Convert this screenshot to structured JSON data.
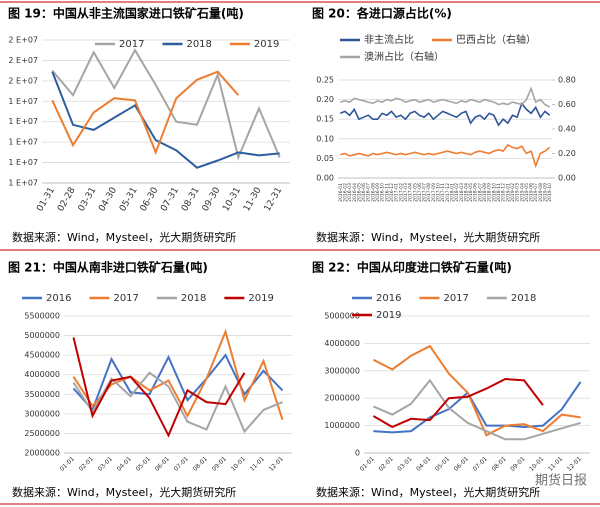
{
  "chart_data": [
    {
      "type": "line",
      "title": "图 19：中国从非主流国家进口铁矿石量(吨)",
      "categories": [
        "01-31",
        "02-28",
        "03-31",
        "04-30",
        "05-31",
        "06-30",
        "07-31",
        "08-31",
        "09-30",
        "10-31",
        "11-30",
        "12-31"
      ],
      "series": [
        {
          "name": "2017",
          "color": "#a5a5a5",
          "values": [
            17000000,
            14600000,
            18800000,
            15300000,
            19000000,
            15600000,
            12000000,
            11700000,
            16600000,
            8500000,
            13300000,
            8500000
          ]
        },
        {
          "name": "2018",
          "color": "#2e5e9e",
          "values": [
            16900000,
            11700000,
            11200000,
            12400000,
            13600000,
            10200000,
            9200000,
            7500000,
            8200000,
            9000000,
            8700000,
            8900000
          ]
        },
        {
          "name": "2019",
          "color": "#ed7d31",
          "values": [
            14100000,
            9700000,
            12900000,
            14300000,
            14100000,
            9000000,
            14300000,
            16100000,
            16900000,
            14600000,
            null,
            null
          ]
        }
      ],
      "ylim": [
        6000000,
        20000000
      ],
      "yticks": [
        {
          "value": 6000000,
          "label": "1 E+07"
        },
        {
          "value": 8000000,
          "label": "1 E+07"
        },
        {
          "value": 10000000,
          "label": "1 E+07"
        },
        {
          "value": 12000000,
          "label": "1 E+07"
        },
        {
          "value": 14000000,
          "label": "1 E+07"
        },
        {
          "value": 16000000,
          "label": "2 E+07"
        },
        {
          "value": 18000000,
          "label": "2 E+07"
        },
        {
          "value": 20000000,
          "label": "2 E+07"
        }
      ],
      "grid": true,
      "legend": "top",
      "note": "数据来源：Wind，Mysteel，光大期货研究所"
    },
    {
      "type": "line",
      "title": "图 20：各进口源占比(%)",
      "categories": [
        "2016-01",
        "2016-02",
        "2016-03",
        "2016-04",
        "2016-05",
        "2016-06",
        "2016-07",
        "2016-08",
        "2016-09",
        "2016-10",
        "2016-11",
        "2016-12",
        "2017-01",
        "2017-02",
        "2017-03",
        "2017-04",
        "2017-05",
        "2017-06",
        "2017-07",
        "2017-08",
        "2017-09",
        "2017-10",
        "2017-11",
        "2017-12",
        "2018-01",
        "2018-02",
        "2018-03",
        "2018-04",
        "2018-05",
        "2018-06",
        "2018-07",
        "2018-08",
        "2018-09",
        "2018-10",
        "2018-11",
        "2018-12",
        "2019-01",
        "2019-02",
        "2019-03",
        "2019-04",
        "2019-05",
        "2019-06",
        "2019-07",
        "2019-08",
        "2019-09",
        "2019-10"
      ],
      "series": [
        {
          "name": "非主流占比",
          "color": "#2f5597",
          "values": [
            0.165,
            0.17,
            0.16,
            0.175,
            0.15,
            0.155,
            0.16,
            0.15,
            0.15,
            0.165,
            0.16,
            0.17,
            0.155,
            0.16,
            0.15,
            0.165,
            0.17,
            0.16,
            0.155,
            0.165,
            0.15,
            0.16,
            0.17,
            0.165,
            0.16,
            0.155,
            0.165,
            0.17,
            0.14,
            0.155,
            0.16,
            0.15,
            0.165,
            0.16,
            0.135,
            0.15,
            0.14,
            0.16,
            0.155,
            0.19,
            0.175,
            0.165,
            0.18,
            0.155,
            0.17,
            0.16
          ]
        },
        {
          "name": "巴西占比（右轴）",
          "color": "#ed7d31",
          "axis": "y2",
          "values": [
            0.19,
            0.2,
            0.18,
            0.19,
            0.2,
            0.19,
            0.18,
            0.2,
            0.19,
            0.2,
            0.21,
            0.2,
            0.19,
            0.2,
            0.19,
            0.2,
            0.21,
            0.2,
            0.19,
            0.2,
            0.19,
            0.2,
            0.21,
            0.22,
            0.21,
            0.2,
            0.21,
            0.2,
            0.19,
            0.21,
            0.22,
            0.21,
            0.2,
            0.22,
            0.23,
            0.22,
            0.27,
            0.25,
            0.24,
            0.26,
            0.2,
            0.22,
            0.1,
            0.2,
            0.22,
            0.25
          ]
        },
        {
          "name": "澳洲占比（右轴）",
          "color": "#a5a5a5",
          "axis": "y2",
          "values": [
            0.62,
            0.63,
            0.62,
            0.65,
            0.64,
            0.63,
            0.62,
            0.61,
            0.63,
            0.62,
            0.64,
            0.63,
            0.65,
            0.64,
            0.62,
            0.63,
            0.64,
            0.62,
            0.63,
            0.64,
            0.62,
            0.63,
            0.64,
            0.63,
            0.62,
            0.61,
            0.63,
            0.62,
            0.64,
            0.63,
            0.62,
            0.64,
            0.63,
            0.62,
            0.6,
            0.61,
            0.6,
            0.62,
            0.61,
            0.6,
            0.64,
            0.73,
            0.62,
            0.64,
            0.6,
            0.58
          ]
        }
      ],
      "ylim": [
        0,
        0.25
      ],
      "yticks": [
        {
          "value": 0,
          "label": "0.00"
        },
        {
          "value": 0.05,
          "label": "0.05"
        },
        {
          "value": 0.1,
          "label": "0.10"
        },
        {
          "value": 0.15,
          "label": "0.15"
        },
        {
          "value": 0.2,
          "label": "0.20"
        },
        {
          "value": 0.25,
          "label": "0.25"
        }
      ],
      "y2lim": [
        0,
        0.8
      ],
      "y2ticks": [
        {
          "value": 0,
          "label": "0.00"
        },
        {
          "value": 0.2,
          "label": "0.20"
        },
        {
          "value": 0.4,
          "label": "0.40"
        },
        {
          "value": 0.6,
          "label": "0.60"
        },
        {
          "value": 0.8,
          "label": "0.80"
        }
      ],
      "grid": true,
      "legend": "top",
      "note": "数据来源：Wind，Mysteel，光大期货研究所"
    },
    {
      "type": "line",
      "title": "图 21：中国从南非进口铁矿石量(吨)",
      "categories": [
        "01-01",
        "02-01",
        "03-01",
        "04-01",
        "05-01",
        "06-01",
        "07-01",
        "08-01",
        "09-01",
        "10-01",
        "11-01",
        "12-01"
      ],
      "series": [
        {
          "name": "2016",
          "color": "#4472c4",
          "values": [
            3650000,
            3100000,
            4400000,
            3550000,
            3500000,
            4450000,
            3350000,
            3900000,
            4500000,
            3500000,
            4100000,
            3600000
          ]
        },
        {
          "name": "2017",
          "color": "#ed7d31",
          "values": [
            3950000,
            3200000,
            3750000,
            3950000,
            3600000,
            3850000,
            2950000,
            3900000,
            5100000,
            3350000,
            4350000,
            2850000
          ]
        },
        {
          "name": "2018",
          "color": "#a5a5a5",
          "values": [
            3800000,
            3050000,
            3900000,
            3450000,
            4050000,
            3700000,
            2800000,
            2600000,
            3700000,
            2550000,
            3100000,
            3300000
          ]
        },
        {
          "name": "2019",
          "color": "#c00000",
          "values": [
            4950000,
            2950000,
            3850000,
            3950000,
            3400000,
            2450000,
            3600000,
            3300000,
            3250000,
            4050000,
            null,
            null
          ]
        }
      ],
      "ylim": [
        2000000,
        5500000
      ],
      "yticks": [
        2000000,
        2500000,
        3000000,
        3500000,
        4000000,
        4500000,
        5000000,
        5500000
      ],
      "grid": true,
      "legend": "top",
      "note": "数据来源：Wind，Mysteel，光大期货研究所"
    },
    {
      "type": "line",
      "title": "图 22：中国从印度进口铁矿石量(吨)",
      "categories": [
        "01-01",
        "02-01",
        "03-01",
        "04-01",
        "05-01",
        "06-01",
        "07-01",
        "08-01",
        "09-01",
        "10-01",
        "11-01",
        "12-01"
      ],
      "series": [
        {
          "name": "2016",
          "color": "#4472c4",
          "values": [
            800000,
            750000,
            800000,
            1300000,
            1600000,
            2200000,
            1000000,
            1000000,
            950000,
            1000000,
            1600000,
            2600000
          ]
        },
        {
          "name": "2017",
          "color": "#ed7d31",
          "values": [
            3400000,
            3050000,
            3550000,
            3900000,
            2900000,
            2200000,
            650000,
            1000000,
            1050000,
            800000,
            1400000,
            1300000
          ]
        },
        {
          "name": "2018",
          "color": "#a5a5a5",
          "values": [
            1700000,
            1400000,
            1800000,
            2650000,
            1650000,
            1100000,
            800000,
            500000,
            500000,
            700000,
            900000,
            1100000
          ]
        },
        {
          "name": "2019",
          "color": "#c00000",
          "values": [
            1350000,
            950000,
            1250000,
            1200000,
            2000000,
            2050000,
            2350000,
            2700000,
            2650000,
            1750000,
            null,
            null
          ]
        }
      ],
      "ylim": [
        0,
        5000000
      ],
      "yticks": [
        0,
        1000000,
        2000000,
        3000000,
        4000000,
        5000000
      ],
      "grid": true,
      "legend": "top",
      "note": "数据来源：Wind，Mysteel，光大期货研究所"
    }
  ],
  "watermark": "期货日报"
}
